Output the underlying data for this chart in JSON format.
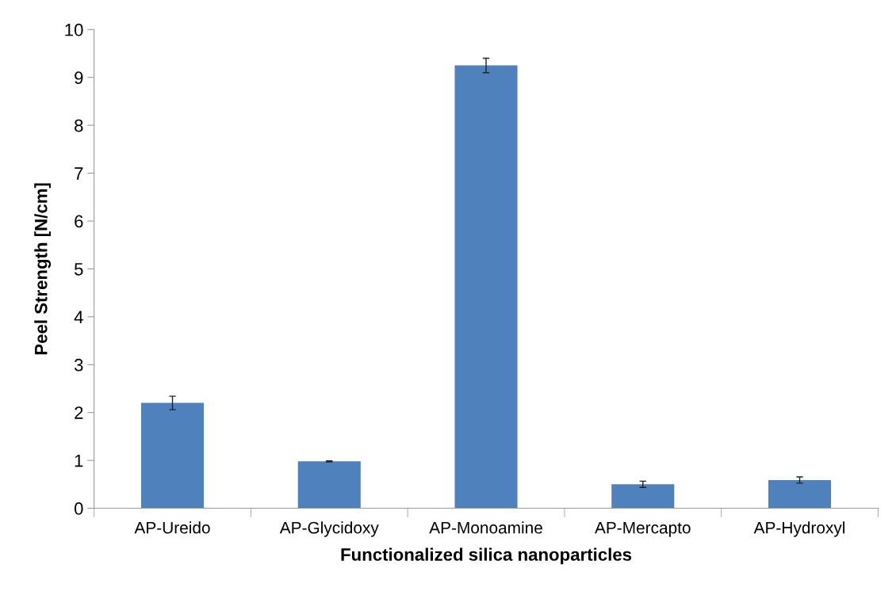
{
  "chart_data": {
    "type": "bar",
    "xlabel": "Functionalized silica nanoparticles",
    "ylabel": "Peel Strength [N/cm]",
    "categories": [
      "AP-Ureido",
      "AP-Glycidoxy",
      "AP-Monoamine",
      "AP-Mercapto",
      "AP-Hydroxyl"
    ],
    "values": [
      2.2,
      0.98,
      9.25,
      0.5,
      0.59
    ],
    "errors": [
      0.14,
      0.01,
      0.15,
      0.065,
      0.065
    ],
    "color": "#4f81bd",
    "ylim": [
      0,
      10
    ],
    "yticks": [
      0,
      1,
      2,
      3,
      4,
      5,
      6,
      7,
      8,
      9,
      10
    ],
    "grid": false,
    "legend": false
  }
}
